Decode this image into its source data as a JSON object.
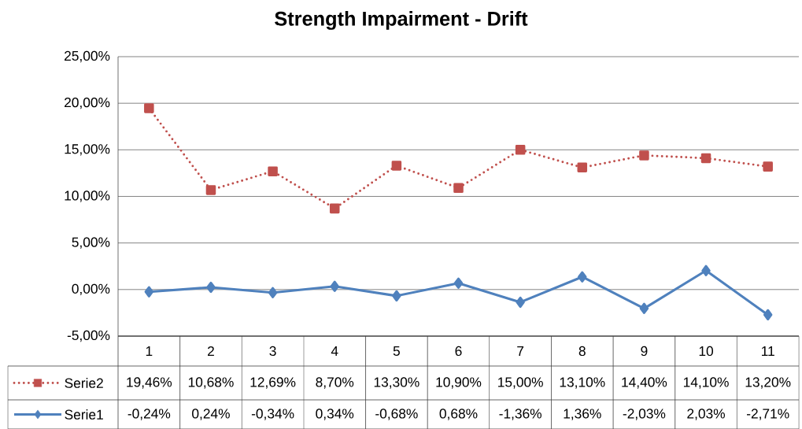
{
  "chart_data": {
    "type": "line",
    "title": "Strength Impairment - Drift",
    "categories": [
      "1",
      "2",
      "3",
      "4",
      "5",
      "6",
      "7",
      "8",
      "9",
      "10",
      "11"
    ],
    "series": [
      {
        "name": "Serie2",
        "color": "#c0504d",
        "marker": "square",
        "line_style": "dotted",
        "values": [
          19.46,
          10.68,
          12.69,
          8.7,
          13.3,
          10.9,
          15.0,
          13.1,
          14.4,
          14.1,
          13.2
        ],
        "value_labels": [
          "19,46%",
          "10,68%",
          "12,69%",
          "8,70%",
          "13,30%",
          "10,90%",
          "15,00%",
          "13,10%",
          "14,40%",
          "14,10%",
          "13,20%"
        ]
      },
      {
        "name": "Serie1",
        "color": "#4f81bd",
        "marker": "diamond",
        "line_style": "solid",
        "values": [
          -0.24,
          0.24,
          -0.34,
          0.34,
          -0.68,
          0.68,
          -1.36,
          1.36,
          -2.03,
          2.03,
          -2.71
        ],
        "value_labels": [
          "-0,24%",
          "0,24%",
          "-0,34%",
          "0,34%",
          "-0,68%",
          "0,68%",
          "-1,36%",
          "1,36%",
          "-2,03%",
          "2,03%",
          "-2,71%"
        ]
      }
    ],
    "ylim": [
      -5,
      25
    ],
    "yticks": [
      {
        "value": -5,
        "label": "-5,00%"
      },
      {
        "value": 0,
        "label": "0,00%"
      },
      {
        "value": 5,
        "label": "5,00%"
      },
      {
        "value": 10,
        "label": "10,00%"
      },
      {
        "value": 15,
        "label": "15,00%"
      },
      {
        "value": 20,
        "label": "20,00%"
      },
      {
        "value": 25,
        "label": "25,00%"
      }
    ],
    "grid": "y",
    "legend": "bottom left"
  }
}
